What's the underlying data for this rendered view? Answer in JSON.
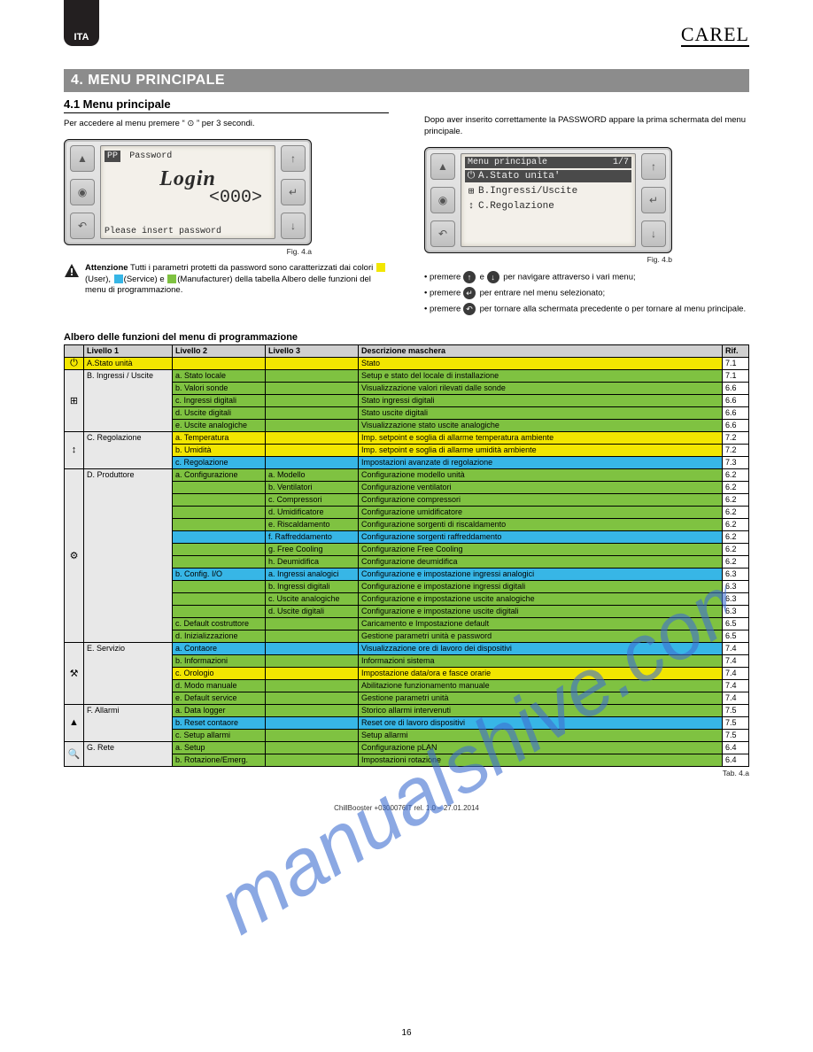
{
  "page": {
    "lang": "ITA",
    "brand": "CAREL",
    "number": "16"
  },
  "section": {
    "number": "4.",
    "title": "MENU PRINCIPALE"
  },
  "subhead": "4.1  Menu principale",
  "intro": "Per accedere al menu premere “ ⊙ ” per 3 secondi.",
  "left_col": {
    "fig": "Fig. 4.a",
    "caution_label": "Attenzione",
    "caution_text": "Tutti i parametri protetti da password sono caratterizzati dai colori",
    "caution_tail": " della tabella Albero delle funzioni del menu di programmazione."
  },
  "legend": {
    "user": "(User)",
    "service": "(Service)",
    "manufacturer": "(Manufacturer)",
    "user_color": "#f2e600",
    "service_color": "#37b6e6",
    "manufacturer_color": "#7fc241"
  },
  "right_col": {
    "lead": "Dopo aver inserito correttamente la PASSWORD appare la prima schermata del menu principale.",
    "fig": "Fig. 4.b",
    "nav1_pre": "premere",
    "nav1_mid": "e",
    "nav1_post": "per navigare attraverso i vari menu;",
    "nav2_pre": "premere",
    "nav2_post": "per entrare nel menu selezionato;",
    "nav3_pre": "premere",
    "nav3_post": "per tornare alla schermata precedente o per tornare al menu principale."
  },
  "lcd1": {
    "tag": "PP",
    "title": "Password",
    "big": "Login",
    "num": "<000>",
    "foot": "Please insert password"
  },
  "lcd2": {
    "head": "Menu principale",
    "page": "1/7",
    "a": "A.Stato unita'",
    "b": "B.Ingressi/Uscite",
    "c": "C.Regolazione"
  },
  "tree": {
    "title": "Albero delle funzioni del menu di programmazione",
    "headers": [
      "",
      "Livello 1",
      "Livello 2",
      "Livello 3",
      "Descrizione maschera",
      "Rif."
    ],
    "colors": {
      "U": "#f2e600",
      "S": "#37b6e6",
      "M": "#7fc241",
      "H": "#d0d0d0",
      "G": "#e8e8e8",
      "W": "#ffffff"
    },
    "rows": [
      {
        "ico": "⏻",
        "icoType": "power",
        "l1": "A.Stato unità",
        "l2": "",
        "l3": "",
        "d": "Stato",
        "r1": "U",
        "r2": "U",
        "r3": "U",
        "rd": "U",
        "ref": "7.1",
        "span": 0
      },
      {
        "ico": "⊞",
        "icoType": "io",
        "l1": "B. Ingressi / Uscite",
        "l2": "a. Stato locale",
        "l3": "",
        "d": "Setup e stato del locale di installazione",
        "r1": "G",
        "r2": "M",
        "r3": "M",
        "rd": "M",
        "ref": "7.1",
        "span": 5
      },
      {
        "l2": "b. Valori sonde",
        "d": "Visualizzazione valori rilevati dalle sonde",
        "r2": "M",
        "r3": "M",
        "rd": "M",
        "ref": "6.6"
      },
      {
        "l2": "c. Ingressi digitali",
        "d": "Stato ingressi digitali",
        "r2": "M",
        "r3": "M",
        "rd": "M",
        "ref": "6.6"
      },
      {
        "l2": "d. Uscite digitali",
        "d": "Stato uscite digitali",
        "r2": "M",
        "r3": "M",
        "rd": "M",
        "ref": "6.6"
      },
      {
        "l2": "e. Uscite analogiche",
        "d": "Visualizzazione stato uscite analogiche",
        "r2": "M",
        "r3": "M",
        "rd": "M",
        "ref": "6.6"
      },
      {
        "ico": "↕",
        "icoType": "reg",
        "l1": "C. Regolazione",
        "l2": "a. Temperatura",
        "l3": "",
        "d": "Imp. setpoint e soglia di allarme temperatura ambiente",
        "r1": "G",
        "r2": "U",
        "r3": "U",
        "rd": "U",
        "ref": "7.2",
        "span": 3
      },
      {
        "l2": "b. Umidità",
        "d": "Imp. setpoint e soglia di allarme umidità ambiente",
        "r2": "U",
        "r3": "U",
        "rd": "U",
        "ref": "7.2"
      },
      {
        "l2": "c. Regolazione",
        "d": "Impostazioni avanzate di regolazione",
        "r2": "S",
        "r3": "S",
        "rd": "S",
        "ref": "7.3"
      },
      {
        "ico": "⚙",
        "icoType": "plant",
        "l1": "D. Produttore",
        "l2": "a. Configurazione",
        "l3": "a. Modello",
        "d": "Configurazione modello unità",
        "r1": "G",
        "r2": "M",
        "r3": "M",
        "rd": "M",
        "ref": "6.2",
        "span": 14
      },
      {
        "l3": "b. Ventilatori",
        "d": "Configurazione ventilatori",
        "r3": "M",
        "rd": "M",
        "ref": "6.2"
      },
      {
        "l3": "c. Compressori",
        "d": "Configurazione compressori",
        "r3": "M",
        "rd": "M",
        "ref": "6.2"
      },
      {
        "l3": "d. Umidificatore",
        "d": "Configurazione umidificatore",
        "r3": "M",
        "rd": "M",
        "ref": "6.2"
      },
      {
        "l3": "e. Riscaldamento",
        "d": "Configurazione sorgenti di riscaldamento",
        "r3": "M",
        "rd": "M",
        "ref": "6.2"
      },
      {
        "l3": "f. Raffreddamento",
        "d": "Configurazione sorgenti raffreddamento",
        "r3": "S",
        "rd": "S",
        "ref": "6.2"
      },
      {
        "l3": "g. Free Cooling",
        "d": "Configurazione Free Cooling",
        "r3": "M",
        "rd": "M",
        "ref": "6.2"
      },
      {
        "l3": "h. Deumidifica",
        "d": "Configurazione deumidifica",
        "r3": "M",
        "rd": "M",
        "ref": "6.2"
      },
      {
        "l2": "b. Config. I/O",
        "l3": "a. Ingressi analogici",
        "d": "Configurazione e impostazione ingressi analogici",
        "r2": "S",
        "r3": "S",
        "rd": "S",
        "ref": "6.3"
      },
      {
        "l3": "b. Ingressi digitali",
        "d": "Configurazione e impostazione ingressi digitali",
        "r3": "M",
        "rd": "M",
        "ref": "6.3"
      },
      {
        "l3": "c. Uscite analogiche",
        "d": "Configurazione e impostazione uscite analogiche",
        "r3": "M",
        "rd": "M",
        "ref": "6.3"
      },
      {
        "l3": "d. Uscite digitali",
        "d": "Configurazione e impostazione uscite digitali",
        "r3": "M",
        "rd": "M",
        "ref": "6.3"
      },
      {
        "l2": "c. Default costruttore",
        "d": "Caricamento e Impostazione default",
        "r2": "M",
        "r3": "M",
        "rd": "M",
        "ref": "6.5"
      },
      {
        "l2": "d. Inizializzazione",
        "d": "Gestione parametri unità e password",
        "r2": "M",
        "r3": "M",
        "rd": "M",
        "ref": "6.5"
      },
      {
        "ico": "⚒",
        "icoType": "serv",
        "l1": "E. Servizio",
        "l2": "a. Contaore",
        "l3": "",
        "d": "Visualizzazione ore di lavoro dei dispositivi",
        "r1": "G",
        "r2": "S",
        "r3": "S",
        "rd": "S",
        "ref": "7.4",
        "span": 5
      },
      {
        "l2": "b. Informazioni",
        "d": "Informazioni sistema",
        "r2": "M",
        "r3": "M",
        "rd": "M",
        "ref": "7.4"
      },
      {
        "l2": "c. Orologio",
        "d": "Impostazione data/ora e fasce orarie",
        "r2": "U",
        "r3": "U",
        "rd": "U",
        "ref": "7.4"
      },
      {
        "l2": "d. Modo manuale",
        "d": "Abilitazione funzionamento manuale",
        "r2": "M",
        "r3": "M",
        "rd": "M",
        "ref": "7.4"
      },
      {
        "l2": "e. Default service",
        "d": "Gestione parametri unità",
        "r2": "M",
        "r3": "M",
        "rd": "M",
        "ref": "7.4"
      },
      {
        "ico": "▲",
        "icoType": "alarm",
        "l1": "F. Allarmi",
        "l2": "a. Data logger",
        "l3": "",
        "d": "Storico allarmi intervenuti",
        "r1": "G",
        "r2": "M",
        "r3": "M",
        "rd": "M",
        "ref": "7.5",
        "span": 3
      },
      {
        "l2": "b. Reset contaore",
        "d": "Reset ore di lavoro dispositivi",
        "r2": "S",
        "r3": "S",
        "rd": "S",
        "ref": "7.5"
      },
      {
        "l2": "c. Setup allarmi",
        "d": "Setup allarmi",
        "r2": "M",
        "r3": "M",
        "rd": "M",
        "ref": "7.5"
      },
      {
        "ico": "🔍",
        "icoType": "net",
        "l1": "G. Rete",
        "l2": "a. Setup",
        "l3": "",
        "d": "Configurazione pLAN",
        "r1": "G",
        "r2": "M",
        "r3": "M",
        "rd": "M",
        "ref": "6.4",
        "span": 2
      },
      {
        "l2": "b. Rotazione/Emerg.",
        "d": "Impostazioni rotazione",
        "r2": "M",
        "r3": "M",
        "rd": "M",
        "ref": "6.4"
      }
    ],
    "caption": "Tab. 4.a"
  },
  "footer": {
    "l1": "ChillBooster +0300076IT rel. 1.0 – 27.01.2014",
    "l2": ""
  },
  "watermark": "manualshive.com"
}
